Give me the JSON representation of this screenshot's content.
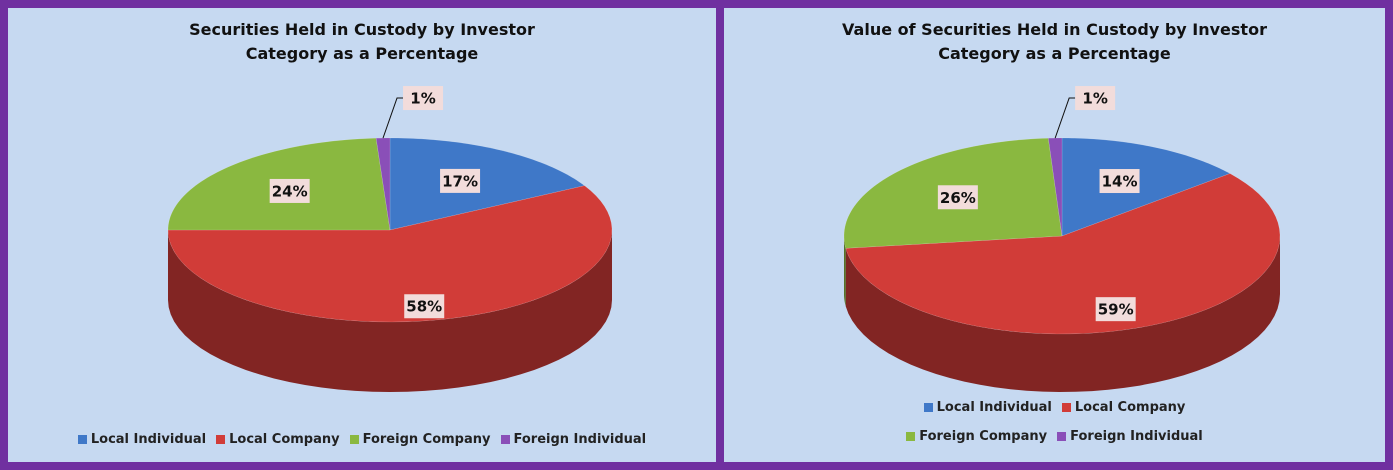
{
  "chart_data": [
    {
      "type": "pie",
      "title": "Securities Held in Custody by Investor Category as a Percentage",
      "categories": [
        "Local Individual",
        "Local Company",
        "Foreign Company",
        "Foreign Individual"
      ],
      "values": [
        17,
        58,
        24,
        1
      ],
      "value_labels": [
        "17%",
        "58%",
        "24%",
        "1%"
      ],
      "colors": [
        "#3f78c8",
        "#d13c38",
        "#8ab840",
        "#8a4fb8"
      ],
      "legend": "bottom"
    },
    {
      "type": "pie",
      "title": "Value of Securities Held in Custody by Investor Category as a Percentage",
      "categories": [
        "Local Individual",
        "Local Company",
        "Foreign Company",
        "Foreign Individual"
      ],
      "values": [
        14,
        59,
        26,
        1
      ],
      "value_labels": [
        "14%",
        "59%",
        "26%",
        "1%"
      ],
      "colors": [
        "#3f78c8",
        "#d13c38",
        "#8ab840",
        "#8a4fb8"
      ],
      "legend": "bottom"
    }
  ]
}
